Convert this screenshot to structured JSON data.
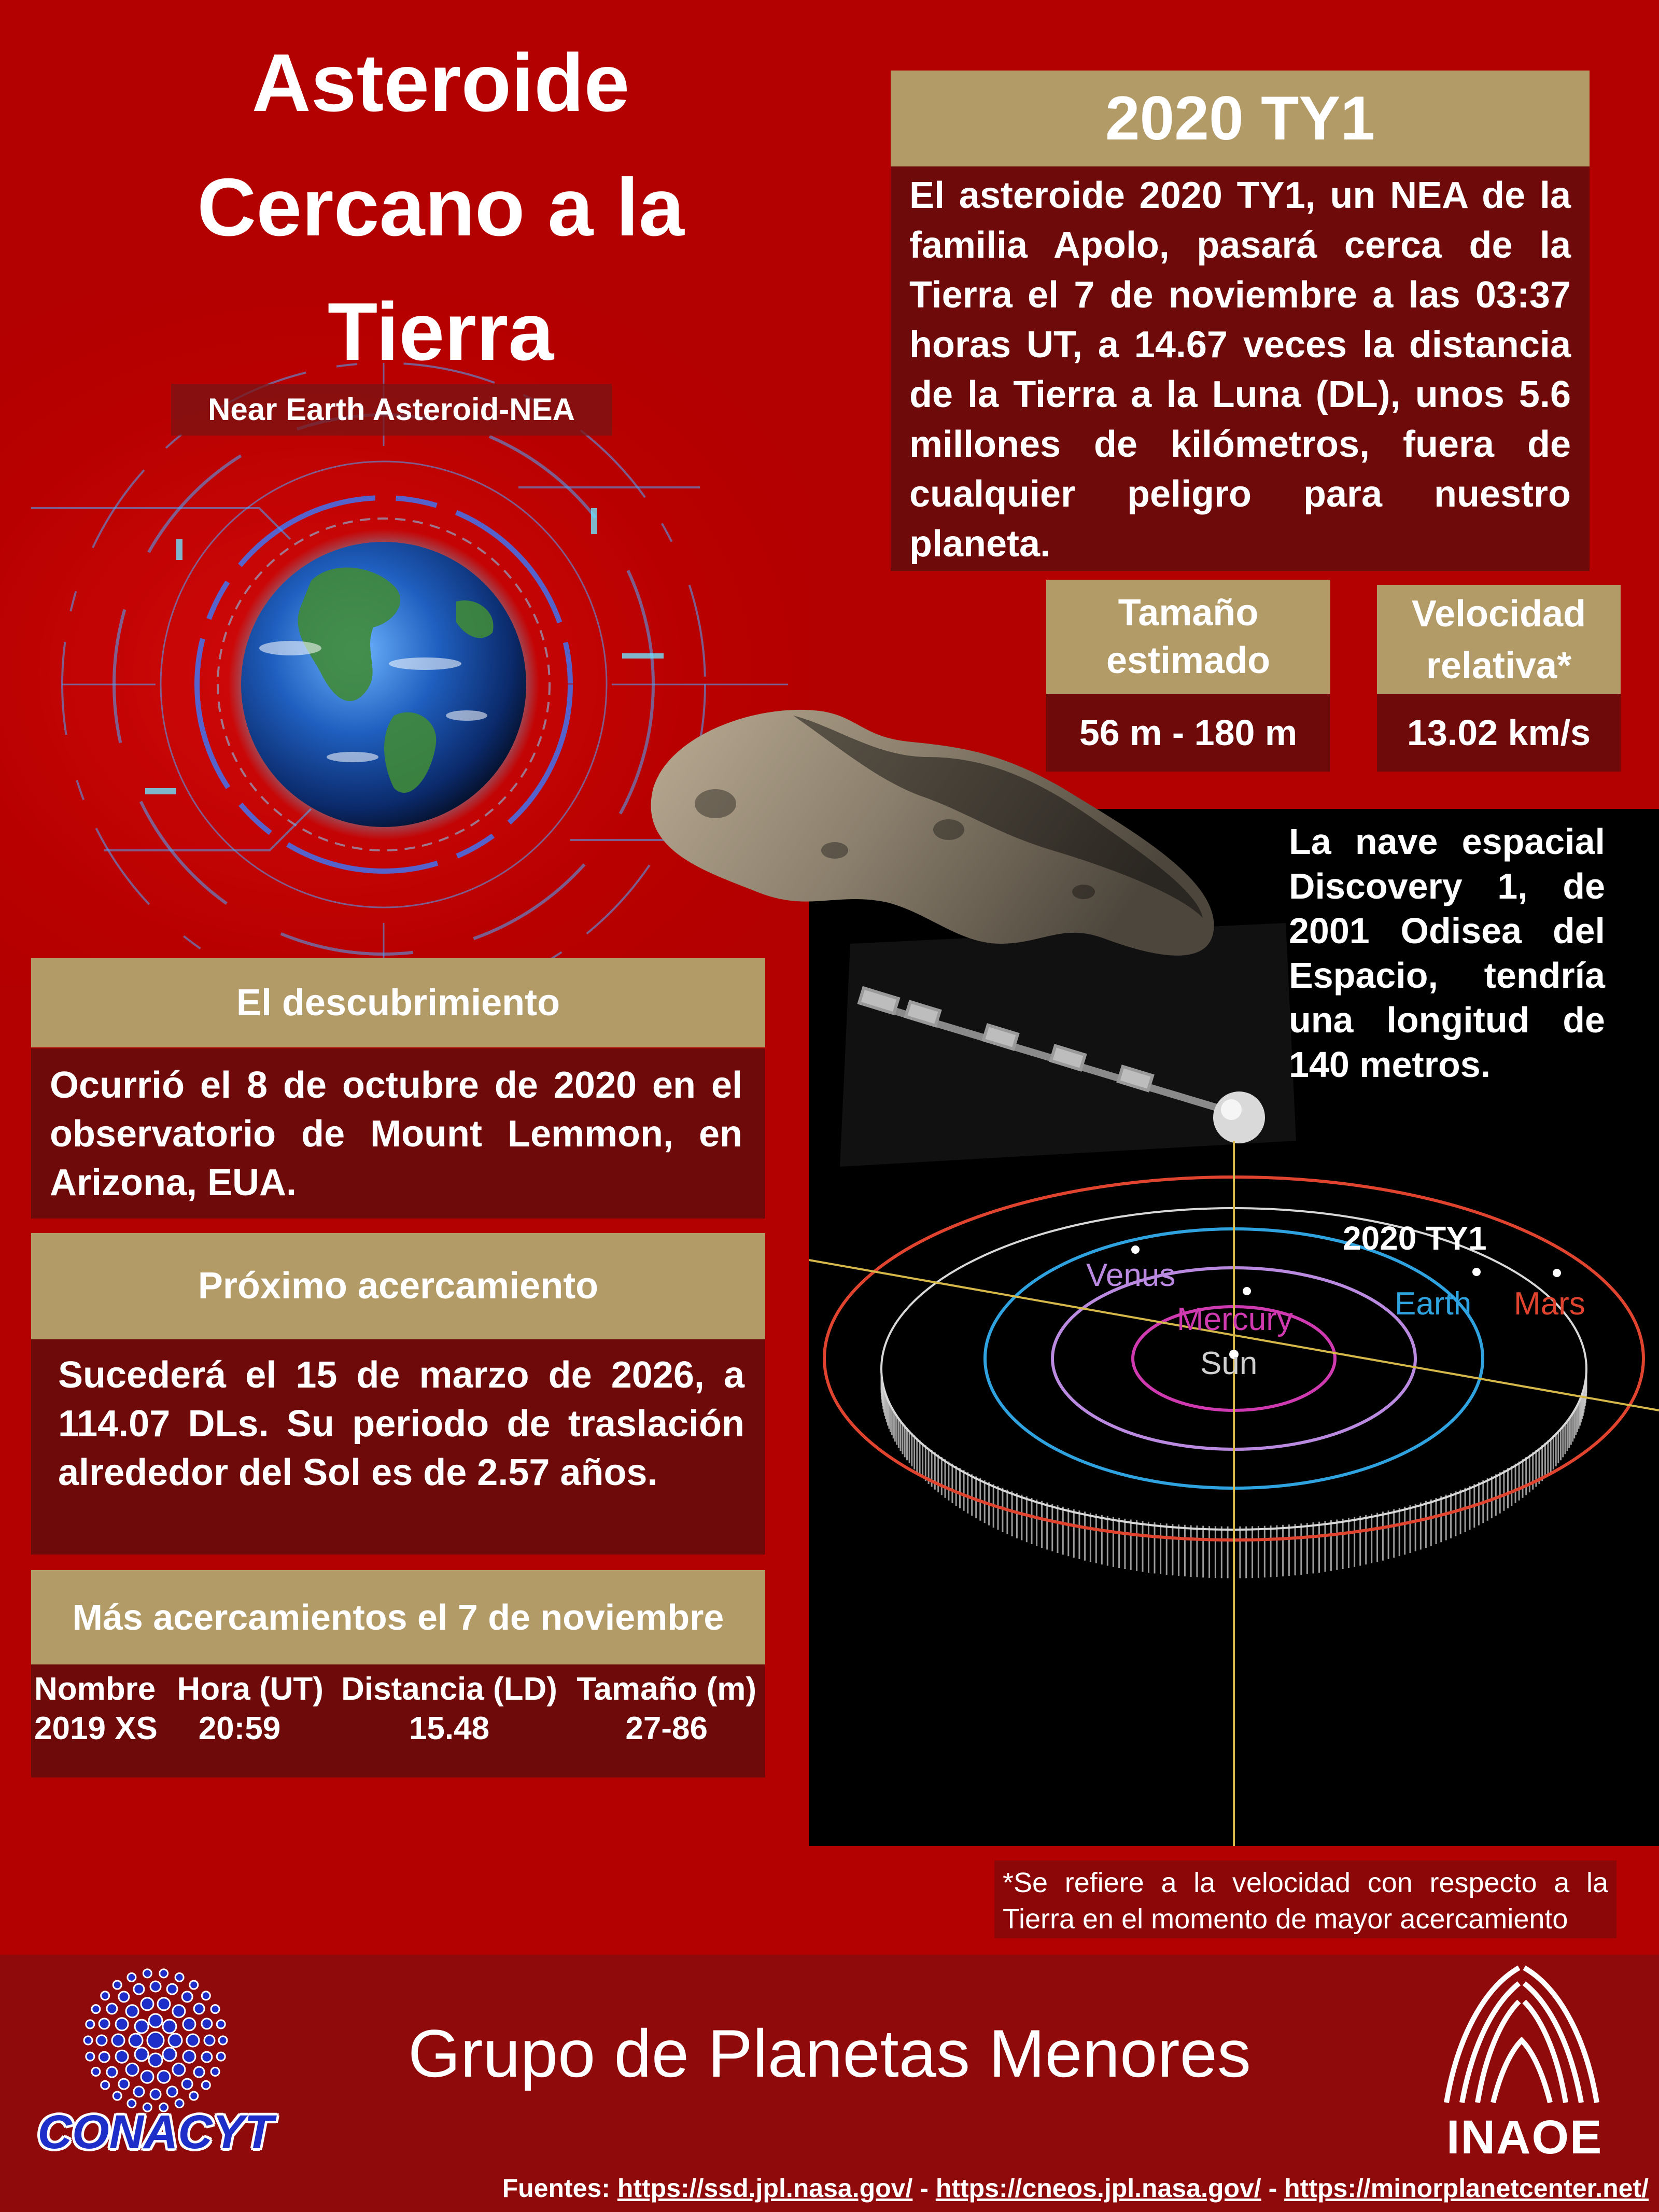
{
  "title": "Asteroide\nCercano a la\nTierra",
  "subtitle": "Near Earth Asteroid-NEA",
  "asteroid": {
    "header": "2020 TY1",
    "body": "El  asteroide 2020 TY1, un NEA de la familia Apolo, pasará cerca de la Tierra el 7 de noviembre a las 03:37 horas UT, a 14.67 veces la distancia de la Tierra a la Luna (DL), unos 5.6 millones de kilómetros, fuera de cualquier peligro para nuestro planeta."
  },
  "size": {
    "label": "Tamaño\nestimado",
    "value": "56 m - 180 m"
  },
  "velocity": {
    "label": "Velocidad\nrelativa*",
    "value": "13.02 km/s"
  },
  "ship_text": "La nave espacial Discovery 1, de 2001 Odisea del Espacio, tendría una longitud de 140 metros.",
  "orbit": {
    "labels": {
      "object": "2020 TY1",
      "venus": "Venus",
      "earth": "Earth",
      "mars": "Mars",
      "mercury": "Mercury",
      "sun": "Sun"
    },
    "colors": {
      "mars": "#e0442f",
      "earth": "#2fa3e0",
      "venus": "#b98ae0",
      "mercury": "#d03ab0",
      "sun": "#cfcfcf",
      "axis": "#d6b84a"
    }
  },
  "discovery": {
    "header": "El descubrimiento",
    "body": "Ocurrió el 8 de octubre de 2020 en el observatorio de Mount Lemmon, en Arizona, EUA."
  },
  "next": {
    "header": "Próximo acercamiento",
    "body": "Sucederá el 15 de marzo de 2026, a 114.07 DLs. Su periodo de traslación alrededor del Sol es de 2.57 años."
  },
  "more": {
    "header": "Más acercamientos el 7 de noviembre",
    "columns": [
      "Nombre",
      "Hora (UT)",
      "Distancia (LD)",
      "Tamaño (m)"
    ],
    "rows": [
      [
        "2019 XS",
        "20:59",
        "15.48",
        "27-86"
      ]
    ]
  },
  "footnote": "*Se refiere a la velocidad con respecto a la Tierra en el momento de mayor acercamiento",
  "footer": {
    "title": "Grupo de Planetas Menores",
    "conacyt": "CONACYT",
    "inaoe": "INAOE",
    "sources_label": "Fuentes:",
    "sources": [
      "https://ssd.jpl.nasa.gov/",
      "https://cneos.jpl.nasa.gov/",
      "https://minorplanetcenter.net/"
    ],
    "separator": " - "
  },
  "colors": {
    "background": "#b30000",
    "gold": "#b39b68",
    "dark_panel": "#6e0a0a",
    "footer": "#8f0a0a",
    "conacyt_blue": "#1d2ec9"
  }
}
